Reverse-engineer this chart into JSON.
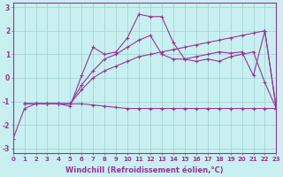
{
  "xlabel": "Windchill (Refroidissement éolien,°C)",
  "bg_color": "#c8f0f0",
  "line_color": "#993399",
  "marker": "+",
  "lines": [
    {
      "x": [
        0,
        1,
        2,
        3,
        4,
        5,
        6,
        7,
        8,
        9,
        10,
        11,
        12,
        13,
        14,
        15,
        16,
        17,
        18,
        19,
        20,
        21,
        22,
        23
      ],
      "y": [
        -2.6,
        -1.3,
        -1.1,
        -1.1,
        -1.1,
        -1.1,
        -1.1,
        -1.15,
        -1.2,
        -1.25,
        -1.3,
        -1.3,
        -1.3,
        -1.3,
        -1.3,
        -1.3,
        -1.3,
        -1.3,
        -1.3,
        -1.3,
        -1.3,
        -1.3,
        -1.3,
        -1.3
      ]
    },
    {
      "x": [
        1,
        2,
        3,
        4,
        5,
        6,
        7,
        8,
        9,
        10,
        11,
        12,
        13,
        14,
        15,
        16,
        17,
        18,
        19,
        20,
        21,
        22,
        23
      ],
      "y": [
        -1.1,
        -1.1,
        -1.1,
        -1.1,
        -1.1,
        -0.5,
        0.0,
        0.3,
        0.5,
        0.7,
        0.9,
        1.0,
        1.1,
        1.2,
        1.3,
        1.4,
        1.5,
        1.6,
        1.7,
        1.8,
        1.9,
        2.0,
        -1.3
      ]
    },
    {
      "x": [
        1,
        2,
        3,
        4,
        5,
        6,
        7,
        8,
        9,
        10,
        11,
        12,
        13,
        14,
        15,
        16,
        17,
        18,
        19,
        20,
        21,
        22,
        23
      ],
      "y": [
        -1.1,
        -1.1,
        -1.1,
        -1.1,
        -1.1,
        -0.3,
        0.3,
        0.8,
        1.0,
        1.3,
        1.6,
        1.8,
        1.0,
        0.8,
        0.8,
        0.9,
        1.0,
        1.1,
        1.05,
        1.1,
        0.1,
        2.0,
        -1.3
      ]
    },
    {
      "x": [
        1,
        2,
        3,
        4,
        5,
        6,
        7,
        8,
        9,
        10,
        11,
        12,
        13,
        14,
        15,
        16,
        17,
        18,
        19,
        20,
        21,
        22,
        23
      ],
      "y": [
        -1.1,
        -1.1,
        -1.1,
        -1.1,
        -1.2,
        0.1,
        1.3,
        1.0,
        1.1,
        1.7,
        2.7,
        2.6,
        2.6,
        1.5,
        0.8,
        0.7,
        0.8,
        0.7,
        0.9,
        1.0,
        1.1,
        -0.2,
        -1.3
      ]
    }
  ],
  "xlim": [
    0,
    23
  ],
  "ylim": [
    -3.2,
    3.2
  ],
  "xticks": [
    0,
    1,
    2,
    3,
    4,
    5,
    6,
    7,
    8,
    9,
    10,
    11,
    12,
    13,
    14,
    15,
    16,
    17,
    18,
    19,
    20,
    21,
    22,
    23
  ],
  "yticks": [
    -3,
    -2,
    -1,
    0,
    1,
    2,
    3
  ],
  "grid_color": "#9ecece",
  "tick_fontsize": 5.0,
  "xlabel_fontsize": 6.0,
  "lw": 0.8
}
